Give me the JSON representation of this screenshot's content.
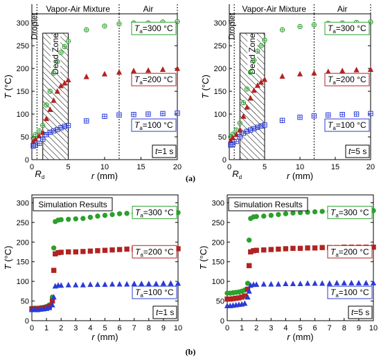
{
  "captions": {
    "a": "(a)",
    "b": "(b)"
  },
  "units": {
    "ta_unit": " °C",
    "t_prefix": "t",
    "t_suffix": "=1 s",
    "t5_suffix": "=5 s"
  },
  "chart_data": [
    {
      "id": "a1",
      "type": "scatter",
      "row": "a",
      "time": "=1 s",
      "xlabel": "r (mm)",
      "ylabel": "T (°C)",
      "xlim": [
        0,
        20
      ],
      "ylim": [
        0,
        320
      ],
      "xticks": [
        "0",
        "5",
        "10",
        "15",
        "20"
      ],
      "yticks": [
        "0",
        "50",
        "100",
        "150",
        "200",
        "250",
        "300"
      ],
      "regions": [
        "Droplet",
        "Vapor-Air Mixture",
        "Air"
      ],
      "region_bounds": [
        0.7,
        12
      ],
      "dead_zone": {
        "label": "Dead Zone",
        "from": 1.5,
        "to": 5
      },
      "rd_label": "R",
      "series": [
        {
          "name": "=300",
          "color": "#2ca02c",
          "marker": "circle-cross",
          "x": [
            0.2,
            0.5,
            1.0,
            1.5,
            2.0,
            2.5,
            3.0,
            3.5,
            4.0,
            4.5,
            5.0,
            7.5,
            10,
            12,
            14,
            16,
            18,
            20
          ],
          "y": [
            47,
            55,
            63,
            75,
            120,
            150,
            190,
            215,
            235,
            248,
            260,
            285,
            293,
            298,
            300,
            300,
            302,
            303
          ]
        },
        {
          "name": "=200",
          "color": "#b22222",
          "marker": "triangle-cross",
          "x": [
            0.2,
            0.5,
            1.0,
            1.5,
            2.0,
            2.5,
            3.0,
            3.5,
            4.0,
            4.5,
            5.0,
            7.5,
            10,
            12,
            14,
            16,
            18,
            20
          ],
          "y": [
            40,
            45,
            52,
            60,
            90,
            110,
            130,
            150,
            162,
            168,
            175,
            182,
            188,
            192,
            195,
            196,
            198,
            200
          ]
        },
        {
          "name": "=100",
          "color": "#2b3bd6",
          "marker": "square-cross",
          "x": [
            0.2,
            0.5,
            1.0,
            1.5,
            2.0,
            2.5,
            3.0,
            3.5,
            4.0,
            4.5,
            5.0,
            7.5,
            10,
            12,
            14,
            16,
            18,
            20
          ],
          "y": [
            30,
            32,
            36,
            45,
            55,
            60,
            63,
            66,
            70,
            73,
            75,
            85,
            95,
            98,
            99,
            100,
            101,
            102
          ]
        }
      ]
    },
    {
      "id": "a2",
      "type": "scatter",
      "row": "a",
      "time": "=5 s",
      "xlabel": "r (mm)",
      "ylabel": "T (°C)",
      "xlim": [
        0,
        20
      ],
      "ylim": [
        0,
        320
      ],
      "xticks": [
        "0",
        "5",
        "10",
        "15",
        "20"
      ],
      "yticks": [
        "0",
        "50",
        "100",
        "150",
        "200",
        "250",
        "300"
      ],
      "regions": [
        "Droplet",
        "Vapor-Air Mixture",
        "Air"
      ],
      "region_bounds": [
        0.7,
        12
      ],
      "dead_zone": {
        "label": "Dead Zone",
        "from": 1.5,
        "to": 5
      },
      "rd_label": "R",
      "series": [
        {
          "name": "=300",
          "color": "#2ca02c",
          "marker": "circle-cross",
          "x": [
            0.2,
            0.5,
            1.0,
            1.5,
            2.0,
            2.5,
            3.0,
            3.5,
            4.0,
            4.5,
            5.0,
            7.5,
            10,
            12,
            14,
            16,
            18,
            20
          ],
          "y": [
            50,
            56,
            65,
            80,
            125,
            155,
            192,
            218,
            238,
            250,
            262,
            285,
            292,
            296,
            299,
            300,
            301,
            302
          ]
        },
        {
          "name": "=200",
          "color": "#b22222",
          "marker": "triangle-cross",
          "x": [
            0.2,
            0.5,
            1.0,
            1.5,
            2.0,
            2.5,
            3.0,
            3.5,
            4.0,
            4.5,
            5.0,
            7.5,
            10,
            12,
            14,
            16,
            18,
            20
          ],
          "y": [
            42,
            48,
            55,
            65,
            95,
            115,
            135,
            152,
            163,
            170,
            176,
            183,
            188,
            190,
            193,
            195,
            197,
            198
          ]
        },
        {
          "name": "=100",
          "color": "#2b3bd6",
          "marker": "square-cross",
          "x": [
            0.2,
            0.5,
            1.0,
            1.5,
            2.0,
            2.5,
            3.0,
            3.5,
            4.0,
            4.5,
            5.0,
            7.5,
            10,
            12,
            14,
            16,
            18,
            20
          ],
          "y": [
            32,
            34,
            40,
            50,
            58,
            62,
            65,
            68,
            71,
            74,
            76,
            86,
            93,
            96,
            98,
            99,
            100,
            101
          ]
        }
      ]
    },
    {
      "id": "b1",
      "type": "scatter",
      "row": "b",
      "time": "=1 s",
      "sim_label": "Simulation Results",
      "xlabel": "r (mm)",
      "ylabel": "T (°C)",
      "xlim": [
        0,
        10
      ],
      "ylim": [
        0,
        320
      ],
      "xticks": [
        "0",
        "1",
        "2",
        "3",
        "4",
        "5",
        "6",
        "7",
        "8",
        "9",
        "10"
      ],
      "yticks": [
        "0",
        "50",
        "100",
        "150",
        "200",
        "250",
        "300"
      ],
      "series": [
        {
          "name": "=300",
          "color": "#2ca02c",
          "marker": "circle",
          "x": [
            0,
            0.2,
            0.4,
            0.6,
            0.8,
            1.0,
            1.2,
            1.4,
            1.5,
            1.6,
            1.8,
            2.0,
            2.5,
            3.0,
            3.5,
            4.0,
            4.5,
            5.0,
            5.5,
            6.0,
            6.5,
            7.0,
            7.5,
            8.0,
            8.5,
            9.0,
            9.5,
            10.0
          ],
          "y": [
            32,
            32,
            32,
            33,
            34,
            36,
            40,
            60,
            185,
            252,
            256,
            257,
            258,
            259,
            260,
            263,
            266,
            268,
            270,
            272,
            273,
            273,
            274,
            274,
            274,
            274,
            275,
            275
          ]
        },
        {
          "name": "=200",
          "color": "#b22222",
          "marker": "square",
          "x": [
            0,
            0.2,
            0.4,
            0.6,
            0.8,
            1.0,
            1.2,
            1.4,
            1.5,
            1.6,
            1.8,
            2.0,
            2.5,
            3.0,
            3.5,
            4.0,
            4.5,
            5.0,
            5.5,
            6.0,
            6.5,
            7.0,
            7.5,
            8.0,
            8.5,
            9.0,
            9.5,
            10.0
          ],
          "y": [
            30,
            30,
            30,
            31,
            32,
            34,
            37,
            50,
            128,
            170,
            173,
            174,
            175,
            175,
            176,
            177,
            178,
            179,
            180,
            181,
            182,
            182,
            183,
            183,
            183,
            183,
            183,
            183
          ]
        },
        {
          "name": "=100",
          "color": "#2b3bd6",
          "marker": "triangle",
          "x": [
            0,
            0.2,
            0.4,
            0.6,
            0.8,
            1.0,
            1.2,
            1.4,
            1.5,
            1.6,
            1.8,
            2.0,
            2.5,
            3.0,
            3.5,
            4.0,
            4.5,
            5.0,
            5.5,
            6.0,
            6.5,
            7.0,
            7.5,
            8.0,
            8.5,
            9.0,
            9.5,
            10.0
          ],
          "y": [
            28,
            28,
            28,
            29,
            30,
            31,
            33,
            40,
            60,
            88,
            90,
            90,
            91,
            91,
            91,
            92,
            92,
            92,
            93,
            93,
            93,
            94,
            94,
            94,
            94,
            95,
            95,
            95
          ]
        }
      ]
    },
    {
      "id": "b2",
      "type": "scatter",
      "row": "b",
      "time": "=5 s",
      "sim_label": "Simulation Results",
      "xlabel": "r (mm)",
      "ylabel": "T (°C)",
      "xlim": [
        0,
        10
      ],
      "ylim": [
        0,
        320
      ],
      "xticks": [
        "0",
        "1",
        "2",
        "3",
        "4",
        "5",
        "6",
        "7",
        "8",
        "9",
        "10"
      ],
      "yticks": [
        "0",
        "50",
        "100",
        "150",
        "200",
        "250",
        "300"
      ],
      "series": [
        {
          "name": "=300",
          "color": "#2ca02c",
          "marker": "circle",
          "x": [
            0,
            0.2,
            0.4,
            0.6,
            0.8,
            1.0,
            1.2,
            1.4,
            1.5,
            1.6,
            1.8,
            2.0,
            2.5,
            3.0,
            3.5,
            4.0,
            4.5,
            5.0,
            5.5,
            6.0,
            6.5,
            7.0,
            7.5,
            8.0,
            8.5,
            9.0,
            9.5,
            10.0
          ],
          "y": [
            70,
            70,
            71,
            72,
            73,
            75,
            78,
            95,
            205,
            260,
            264,
            265,
            266,
            268,
            270,
            272,
            274,
            275,
            276,
            277,
            278,
            278,
            279,
            279,
            279,
            279,
            280,
            280
          ]
        },
        {
          "name": "=200",
          "color": "#b22222",
          "marker": "square",
          "x": [
            0,
            0.2,
            0.4,
            0.6,
            0.8,
            1.0,
            1.2,
            1.4,
            1.5,
            1.6,
            1.8,
            2.0,
            2.5,
            3.0,
            3.5,
            4.0,
            4.5,
            5.0,
            5.5,
            6.0,
            6.5,
            7.0,
            7.5,
            8.0,
            8.5,
            9.0,
            9.5,
            10.0
          ],
          "y": [
            55,
            55,
            56,
            57,
            58,
            60,
            63,
            80,
            140,
            175,
            178,
            179,
            180,
            181,
            182,
            183,
            184,
            184,
            185,
            185,
            186,
            186,
            186,
            187,
            187,
            187,
            187,
            187
          ]
        },
        {
          "name": "=100",
          "color": "#2b3bd6",
          "marker": "triangle",
          "x": [
            0,
            0.2,
            0.4,
            0.6,
            0.8,
            1.0,
            1.2,
            1.4,
            1.5,
            1.6,
            1.8,
            2.0,
            2.5,
            3.0,
            3.5,
            4.0,
            4.5,
            5.0,
            5.5,
            6.0,
            6.5,
            7.0,
            7.5,
            8.0,
            8.5,
            9.0,
            9.5,
            10.0
          ],
          "y": [
            38,
            38,
            39,
            40,
            41,
            42,
            44,
            60,
            75,
            90,
            92,
            92,
            93,
            93,
            93,
            94,
            94,
            94,
            95,
            95,
            95,
            95,
            96,
            96,
            96,
            96,
            96,
            96
          ]
        }
      ]
    }
  ]
}
